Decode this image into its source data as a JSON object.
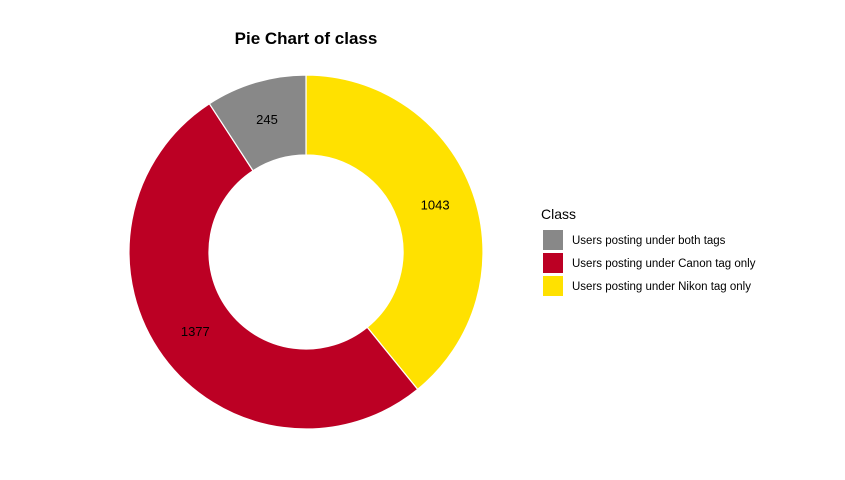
{
  "chart_data": {
    "type": "pie",
    "style": "donut",
    "title": "Pie Chart of class",
    "legend": {
      "title": "Class",
      "placement": "right"
    },
    "slices": [
      {
        "label": "Users posting under both tags",
        "value": 245,
        "color": "#888888"
      },
      {
        "label": "Users posting under Canon tag only",
        "value": 1377,
        "color": "#BC0024"
      },
      {
        "label": "Users posting under Nikon tag only",
        "value": 1043,
        "color": "#FFE100"
      }
    ],
    "slice_order_clockwise_from_top": [
      "Users posting under Nikon tag only",
      "Users posting under Canon tag only",
      "Users posting under both tags"
    ],
    "data_labels": true
  }
}
